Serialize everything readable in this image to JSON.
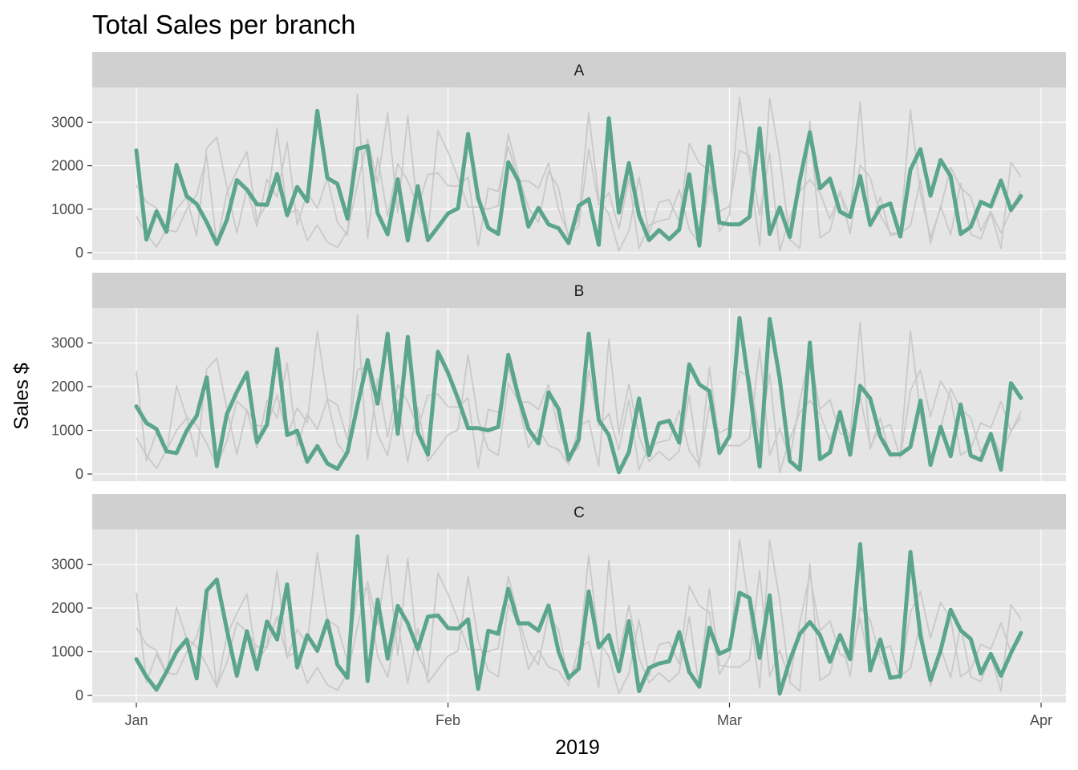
{
  "chart_data": {
    "type": "line",
    "title": "Total Sales per branch",
    "xlabel": "2019",
    "ylabel": "Sales $",
    "x_start": "2019-01-01",
    "x_end": "2019-03-30",
    "xlim": [
      "2019-01-01",
      "2019-04-01"
    ],
    "ylim": [
      0,
      3800
    ],
    "y_ticks": [
      0,
      1000,
      2000,
      3000
    ],
    "x_ticks": [
      {
        "date": "2019-01-01",
        "label": "Jan"
      },
      {
        "date": "2019-02-01",
        "label": "Feb"
      },
      {
        "date": "2019-03-01",
        "label": "Mar"
      },
      {
        "date": "2019-04-01",
        "label": "Apr"
      }
    ],
    "grid": true,
    "highlight_color": "#5aa58c",
    "context_color": "#c9c9c9",
    "panel_color": "#e5e5e5",
    "strip_color": "#d0d0d0",
    "series": [
      {
        "name": "A",
        "values": [
          2350,
          300,
          950,
          480,
          2020,
          1300,
          1120,
          700,
          200,
          750,
          1670,
          1450,
          1110,
          1100,
          1810,
          860,
          1510,
          1180,
          3260,
          1720,
          1580,
          780,
          2390,
          2450,
          910,
          420,
          1690,
          280,
          1530,
          290,
          590,
          900,
          1020,
          2730,
          1260,
          570,
          430,
          2080,
          1650,
          600,
          1030,
          650,
          560,
          220,
          1080,
          1230,
          180,
          3090,
          920,
          2060,
          860,
          290,
          520,
          310,
          530,
          1800,
          160,
          2440,
          690,
          650,
          650,
          820,
          2860,
          430,
          1040,
          360,
          1670,
          2770,
          1480,
          1700,
          940,
          820,
          1760,
          640,
          1040,
          1130,
          370,
          1910,
          2380,
          1310,
          2130,
          1760,
          430,
          590,
          1170,
          1060,
          1660,
          980,
          1300
        ]
      },
      {
        "name": "B",
        "values": [
          1550,
          1170,
          1030,
          520,
          480,
          990,
          1330,
          2210,
          180,
          1370,
          1880,
          2320,
          730,
          1130,
          2860,
          890,
          990,
          280,
          640,
          240,
          120,
          500,
          1570,
          2610,
          1610,
          3210,
          920,
          3140,
          950,
          440,
          2800,
          2320,
          1720,
          1050,
          1050,
          1000,
          1080,
          2730,
          1780,
          1030,
          700,
          1870,
          1490,
          330,
          790,
          3210,
          1240,
          890,
          40,
          500,
          1730,
          430,
          1160,
          1220,
          720,
          2510,
          2050,
          1900,
          480,
          870,
          3570,
          1940,
          170,
          3550,
          2190,
          300,
          100,
          3010,
          340,
          500,
          1420,
          440,
          2020,
          1730,
          860,
          450,
          450,
          620,
          1680,
          210,
          1080,
          410,
          1590,
          420,
          320,
          920,
          100,
          2080,
          1740
        ]
      },
      {
        "name": "C",
        "values": [
          830,
          430,
          130,
          540,
          1000,
          1280,
          390,
          2400,
          2650,
          1510,
          450,
          1470,
          600,
          1690,
          1280,
          2540,
          640,
          1380,
          1020,
          1710,
          700,
          400,
          3640,
          330,
          2190,
          840,
          2050,
          1650,
          1060,
          1800,
          1830,
          1540,
          1530,
          1740,
          150,
          1480,
          1410,
          2440,
          1650,
          1650,
          1480,
          2060,
          1000,
          400,
          610,
          2380,
          1100,
          1380,
          550,
          1700,
          100,
          630,
          730,
          780,
          1450,
          540,
          200,
          1550,
          950,
          1060,
          2350,
          2230,
          860,
          2290,
          40,
          800,
          1410,
          1680,
          1380,
          770,
          1380,
          830,
          3460,
          570,
          1280,
          400,
          440,
          3280,
          1360,
          350,
          1030,
          1960,
          1490,
          1290,
          500,
          950,
          450,
          970,
          1430
        ]
      }
    ]
  }
}
